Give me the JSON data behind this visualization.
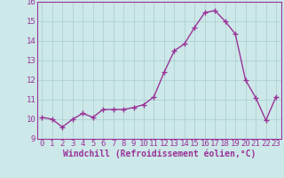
{
  "x": [
    0,
    1,
    2,
    3,
    4,
    5,
    6,
    7,
    8,
    9,
    10,
    11,
    12,
    13,
    14,
    15,
    16,
    17,
    18,
    19,
    20,
    21,
    22,
    23
  ],
  "y": [
    10.1,
    10.0,
    9.6,
    10.0,
    10.3,
    10.1,
    10.5,
    10.5,
    10.5,
    10.6,
    10.75,
    11.15,
    12.4,
    13.5,
    13.85,
    14.7,
    15.45,
    15.55,
    15.0,
    14.35,
    12.0,
    11.1,
    9.95,
    11.15
  ],
  "line_color": "#993399",
  "marker": "+",
  "marker_size": 4,
  "linewidth": 1.0,
  "bg_color": "#cce8e8",
  "grid_color": "#aacccc",
  "xlabel": "Windchill (Refroidissement éolien,°C)",
  "xlabel_fontsize": 7,
  "tick_fontsize": 6.5,
  "ylim": [
    9,
    16
  ],
  "xlim": [
    -0.5,
    23.5
  ],
  "yticks": [
    9,
    10,
    11,
    12,
    13,
    14,
    15,
    16
  ],
  "xticks": [
    0,
    1,
    2,
    3,
    4,
    5,
    6,
    7,
    8,
    9,
    10,
    11,
    12,
    13,
    14,
    15,
    16,
    17,
    18,
    19,
    20,
    21,
    22,
    23
  ]
}
